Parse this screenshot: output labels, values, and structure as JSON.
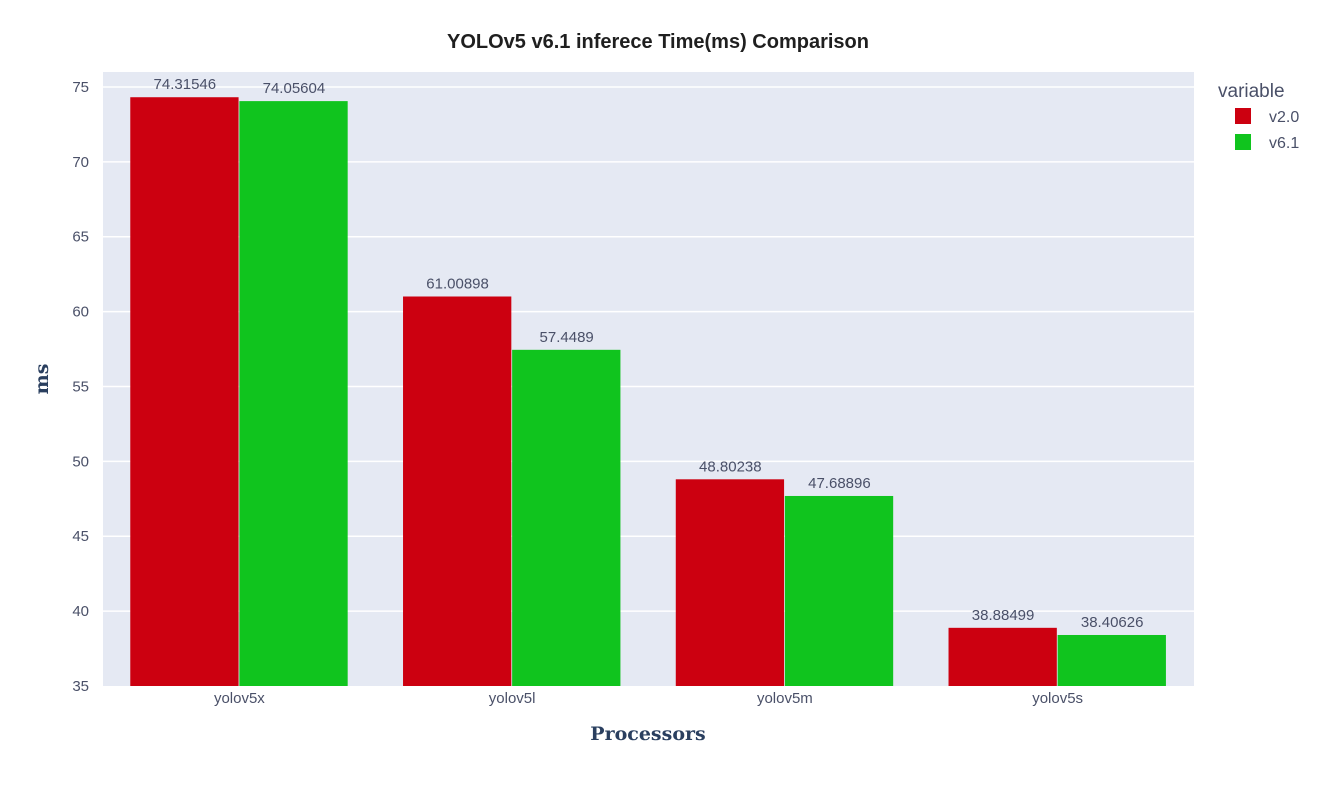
{
  "chart_data": {
    "type": "bar",
    "title": "YOLOv5 v6.1 inferece Time(ms) Comparison",
    "xlabel": "Processors",
    "ylabel": "ms",
    "categories": [
      "yolov5x",
      "yolov5l",
      "yolov5m",
      "yolov5s"
    ],
    "ylim": [
      35,
      76
    ],
    "yticks": [
      35,
      40,
      45,
      50,
      55,
      60,
      65,
      70,
      75
    ],
    "grid": true,
    "legend": {
      "title": "variable",
      "placement": "top-right"
    },
    "series": [
      {
        "name": "v2.0",
        "color": "#cc0010",
        "values": [
          74.31546,
          61.00898,
          48.80238,
          38.88499
        ],
        "labels": [
          "74.31546",
          "61.00898",
          "48.80238",
          "38.88499"
        ]
      },
      {
        "name": "v6.1",
        "color": "#10c41e",
        "values": [
          74.05604,
          57.4489,
          47.68896,
          38.40626
        ],
        "labels": [
          "74.05604",
          "57.4489",
          "47.68896",
          "38.40626"
        ]
      }
    ],
    "plot_background": "#e5e9f3"
  }
}
